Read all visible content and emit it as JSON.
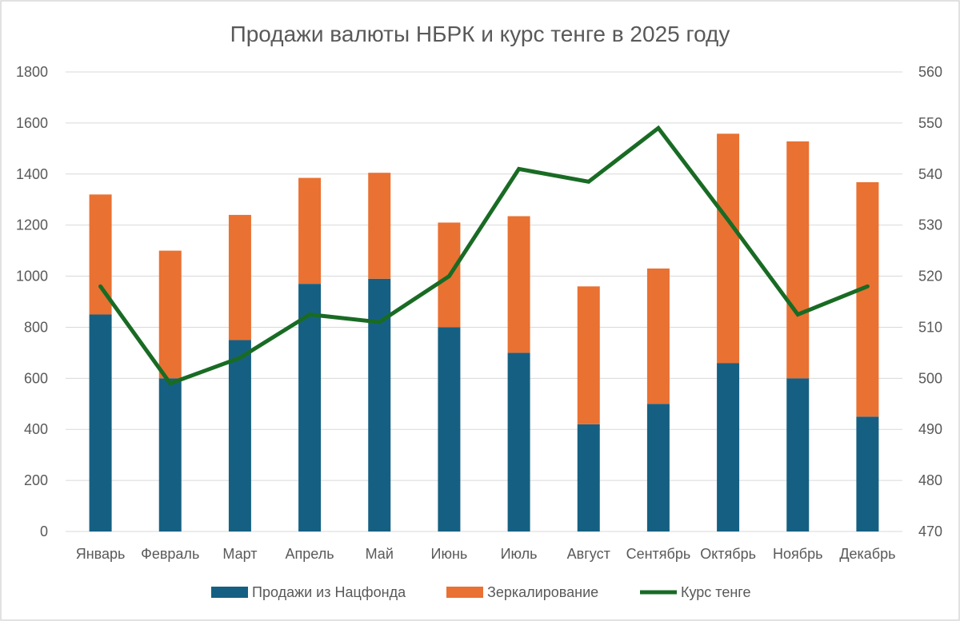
{
  "chart_data": {
    "type": "bar",
    "stacked": true,
    "title": "Продажи валюты НБРК и курс тенге в 2025 году",
    "categories": [
      "Январь",
      "Февраль",
      "Март",
      "Апрель",
      "Май",
      "Июнь",
      "Июль",
      "Август",
      "Сентябрь",
      "Октябрь",
      "Ноябрь",
      "Декабрь"
    ],
    "series": [
      {
        "name": "Продажи из Нацфонда",
        "kind": "bar",
        "axis": "left",
        "color": "#156082",
        "values": [
          850,
          600,
          750,
          970,
          990,
          800,
          700,
          420,
          500,
          660,
          600,
          450
        ]
      },
      {
        "name": "Зеркалирование",
        "kind": "bar",
        "axis": "left",
        "color": "#E97132",
        "values": [
          470,
          500,
          490,
          415,
          415,
          410,
          535,
          540,
          530,
          898,
          928,
          918
        ]
      },
      {
        "name": "Курс тенге",
        "kind": "line",
        "axis": "right",
        "color": "#196B24",
        "values": [
          518,
          499,
          504,
          512.5,
          511,
          520,
          541,
          538.5,
          549,
          531,
          512.5,
          518
        ]
      }
    ],
    "y_left": {
      "min": 0,
      "max": 1800,
      "ticks": [
        0,
        200,
        400,
        600,
        800,
        1000,
        1200,
        1400,
        1600,
        1800
      ]
    },
    "y_right": {
      "min": 470,
      "max": 560,
      "ticks": [
        470,
        480,
        490,
        500,
        510,
        520,
        530,
        540,
        550,
        560
      ]
    },
    "grid": true,
    "legend_position": "bottom"
  }
}
